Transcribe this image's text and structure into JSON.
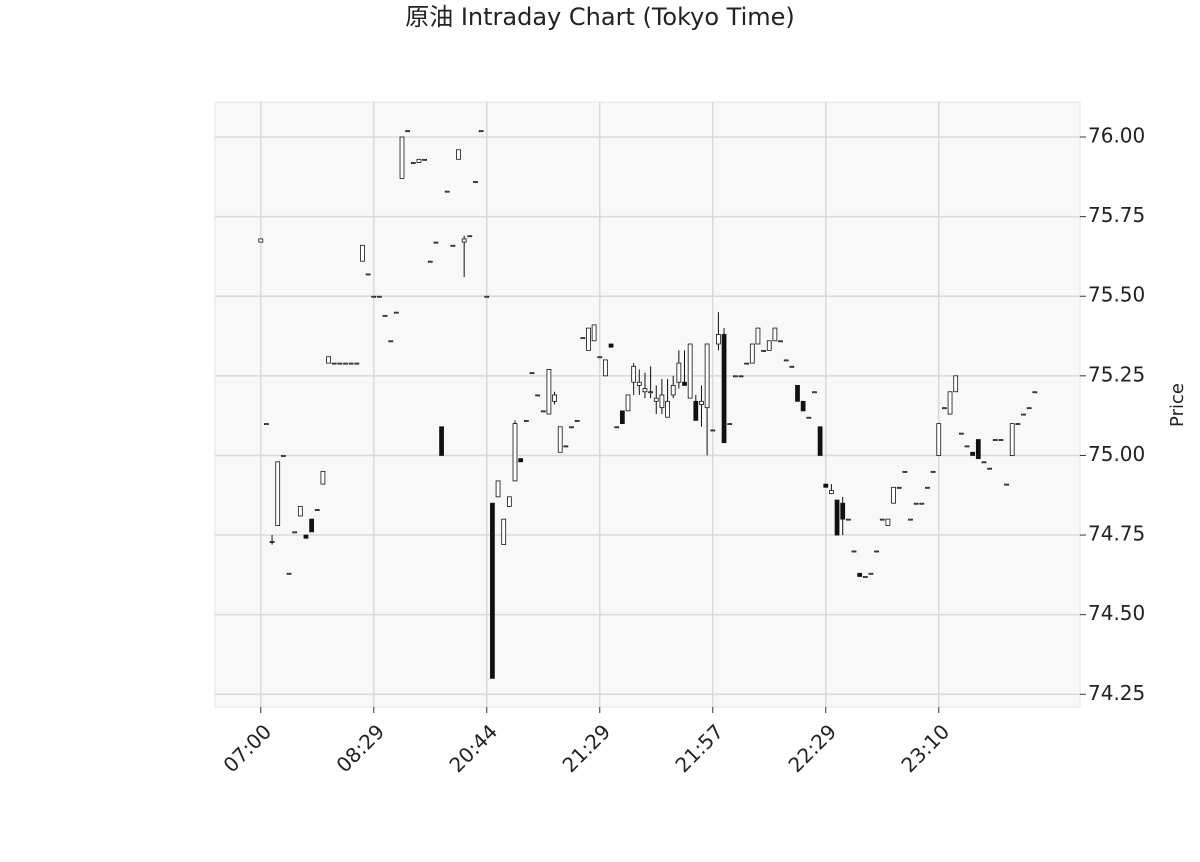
{
  "chart_data": {
    "type": "candlestick",
    "title": "原油 Intraday Chart (Tokyo Time)",
    "y_label": "Price",
    "up_color": "#ffffff",
    "down_color": "#111111",
    "edge_color": "#111111",
    "grid": true,
    "xlim": [
      -8.1,
      145
    ],
    "ylim": [
      74.21,
      76.11
    ],
    "xticks": [
      {
        "value": 0,
        "label": "07:00"
      },
      {
        "value": 20,
        "label": "08:29"
      },
      {
        "value": 40,
        "label": "20:44"
      },
      {
        "value": 60,
        "label": "21:29"
      },
      {
        "value": 80,
        "label": "21:57"
      },
      {
        "value": 100,
        "label": "22:29"
      },
      {
        "value": 120,
        "label": "23:10"
      }
    ],
    "yticks": [
      74.25,
      {
        "value": 74.5,
        "label": "74.50"
      },
      74.75,
      {
        "value": 75,
        "label": "75.00"
      },
      75.25,
      {
        "value": 75.5,
        "label": "75.50"
      },
      75.75,
      {
        "value": 76,
        "label": "76.00"
      }
    ],
    "open": [
      75.67,
      75.1,
      74.73,
      74.78,
      75.0,
      74.63,
      74.76,
      74.81,
      74.75,
      74.8,
      74.83,
      74.91,
      75.29,
      75.29,
      75.29,
      75.29,
      75.29,
      75.29,
      75.61,
      75.57,
      75.5,
      75.5,
      75.44,
      75.36,
      75.45,
      75.87,
      76.02,
      75.92,
      75.92,
      75.93,
      75.61,
      75.67,
      75.09,
      75.83,
      75.66,
      75.93,
      75.67,
      75.69,
      75.86,
      76.02,
      75.5,
      74.85,
      74.87,
      74.72,
      74.84,
      74.92,
      74.99,
      75.11,
      75.26,
      75.19,
      75.14,
      75.13,
      75.17,
      75.01,
      75.03,
      75.09,
      75.11,
      75.37,
      75.33,
      75.36,
      75.31,
      75.25,
      75.35,
      75.09,
      75.14,
      75.14,
      75.23,
      75.22,
      75.2,
      75.2,
      75.17,
      75.15,
      75.12,
      75.19,
      75.23,
      75.23,
      75.18,
      75.17,
      75.16,
      75.15,
      75.08,
      75.35,
      75.38,
      75.1,
      75.25,
      75.25,
      75.29,
      75.29,
      75.35,
      75.33,
      75.33,
      75.36,
      75.36,
      75.3,
      75.28,
      75.22,
      75.17,
      75.12,
      75.2,
      75.09,
      74.91,
      74.88,
      74.86,
      74.85,
      74.8,
      74.7,
      74.63,
      74.62,
      74.63,
      74.7,
      74.8,
      74.78,
      74.85,
      74.9,
      74.95,
      74.8,
      74.85,
      74.85,
      74.9,
      74.95,
      75.0,
      75.15,
      75.13,
      75.2,
      75.07,
      75.03,
      75.01,
      75.05,
      74.98,
      74.96,
      75.05,
      75.05,
      74.91,
      75.0,
      75.1,
      75.13,
      75.15,
      75.2
    ],
    "high": [
      75.68,
      75.1,
      74.75,
      74.98,
      75.0,
      74.63,
      74.76,
      74.84,
      74.75,
      74.8,
      74.83,
      74.95,
      75.31,
      75.29,
      75.29,
      75.29,
      75.29,
      75.29,
      75.66,
      75.57,
      75.5,
      75.5,
      75.44,
      75.36,
      75.45,
      76.0,
      76.02,
      75.92,
      75.93,
      75.93,
      75.61,
      75.67,
      75.09,
      75.83,
      75.66,
      75.96,
      75.69,
      75.69,
      75.86,
      76.02,
      75.5,
      74.85,
      74.92,
      74.8,
      74.87,
      75.11,
      74.99,
      75.11,
      75.26,
      75.19,
      75.14,
      75.27,
      75.2,
      75.09,
      75.03,
      75.09,
      75.11,
      75.37,
      75.4,
      75.41,
      75.31,
      75.3,
      75.35,
      75.09,
      75.14,
      75.19,
      75.29,
      75.27,
      75.26,
      75.28,
      75.22,
      75.24,
      75.24,
      75.25,
      75.33,
      75.33,
      75.35,
      75.19,
      75.22,
      75.35,
      75.08,
      75.45,
      75.4,
      75.1,
      75.25,
      75.25,
      75.29,
      75.35,
      75.4,
      75.33,
      75.36,
      75.4,
      75.36,
      75.3,
      75.28,
      75.22,
      75.17,
      75.12,
      75.2,
      75.09,
      74.91,
      74.91,
      74.86,
      74.87,
      74.8,
      74.7,
      74.63,
      74.62,
      74.63,
      74.7,
      74.8,
      74.8,
      74.9,
      74.9,
      74.95,
      74.8,
      74.85,
      74.85,
      74.9,
      74.95,
      75.1,
      75.15,
      75.2,
      75.25,
      75.07,
      75.03,
      75.01,
      75.05,
      74.98,
      74.96,
      75.05,
      75.05,
      74.91,
      75.1,
      75.1,
      75.13,
      75.15,
      75.2
    ],
    "low": [
      75.67,
      75.1,
      74.72,
      74.78,
      75.0,
      74.63,
      74.76,
      74.81,
      74.74,
      74.76,
      74.83,
      74.91,
      75.29,
      75.29,
      75.29,
      75.29,
      75.29,
      75.29,
      75.61,
      75.57,
      75.5,
      75.5,
      75.44,
      75.36,
      75.45,
      75.87,
      76.02,
      75.92,
      75.92,
      75.93,
      75.61,
      75.67,
      75.0,
      75.83,
      75.66,
      75.93,
      75.56,
      75.69,
      75.86,
      76.02,
      75.5,
      74.3,
      74.87,
      74.72,
      74.84,
      74.92,
      74.98,
      75.11,
      75.26,
      75.19,
      75.14,
      75.13,
      75.16,
      75.01,
      75.03,
      75.09,
      75.11,
      75.37,
      75.33,
      75.36,
      75.31,
      75.25,
      75.34,
      75.09,
      75.1,
      75.14,
      75.19,
      75.19,
      75.18,
      75.18,
      75.13,
      75.13,
      75.12,
      75.18,
      75.21,
      75.22,
      75.18,
      75.11,
      75.09,
      75.0,
      75.08,
      75.33,
      75.04,
      75.1,
      75.25,
      75.25,
      75.29,
      75.29,
      75.35,
      75.33,
      75.33,
      75.36,
      75.36,
      75.3,
      75.28,
      75.17,
      75.14,
      75.12,
      75.2,
      75.0,
      74.9,
      74.88,
      74.75,
      74.75,
      74.8,
      74.7,
      74.62,
      74.62,
      74.63,
      74.7,
      74.8,
      74.78,
      74.85,
      74.9,
      74.95,
      74.8,
      74.85,
      74.85,
      74.9,
      74.95,
      75.0,
      75.15,
      75.13,
      75.2,
      75.07,
      75.03,
      75.0,
      74.99,
      74.98,
      74.96,
      75.05,
      75.05,
      74.91,
      75.0,
      75.1,
      75.13,
      75.15,
      75.2
    ],
    "close": [
      75.68,
      75.1,
      74.73,
      74.98,
      75.0,
      74.63,
      74.76,
      74.84,
      74.74,
      74.76,
      74.83,
      74.95,
      75.31,
      75.29,
      75.29,
      75.29,
      75.29,
      75.29,
      75.66,
      75.57,
      75.5,
      75.5,
      75.44,
      75.36,
      75.45,
      76.0,
      76.02,
      75.92,
      75.93,
      75.93,
      75.61,
      75.67,
      75.0,
      75.83,
      75.66,
      75.96,
      75.68,
      75.69,
      75.86,
      76.02,
      75.5,
      74.3,
      74.92,
      74.8,
      74.87,
      75.1,
      74.98,
      75.11,
      75.26,
      75.19,
      75.14,
      75.27,
      75.19,
      75.09,
      75.03,
      75.09,
      75.11,
      75.37,
      75.4,
      75.41,
      75.31,
      75.3,
      75.34,
      75.09,
      75.1,
      75.19,
      75.28,
      75.23,
      75.21,
      75.2,
      75.18,
      75.19,
      75.17,
      75.22,
      75.29,
      75.22,
      75.35,
      75.11,
      75.17,
      75.35,
      75.08,
      75.38,
      75.04,
      75.1,
      75.25,
      75.25,
      75.29,
      75.35,
      75.4,
      75.33,
      75.36,
      75.4,
      75.36,
      75.3,
      75.28,
      75.17,
      75.14,
      75.12,
      75.2,
      75.0,
      74.9,
      74.89,
      74.75,
      74.8,
      74.8,
      74.7,
      74.62,
      74.62,
      74.63,
      74.7,
      74.8,
      74.8,
      74.9,
      74.9,
      74.95,
      74.8,
      74.85,
      74.85,
      74.9,
      74.95,
      75.1,
      75.15,
      75.2,
      75.25,
      75.07,
      75.03,
      75.0,
      74.99,
      74.98,
      74.96,
      75.05,
      75.05,
      74.91,
      75.1,
      75.1,
      75.13,
      75.15,
      75.2
    ]
  }
}
